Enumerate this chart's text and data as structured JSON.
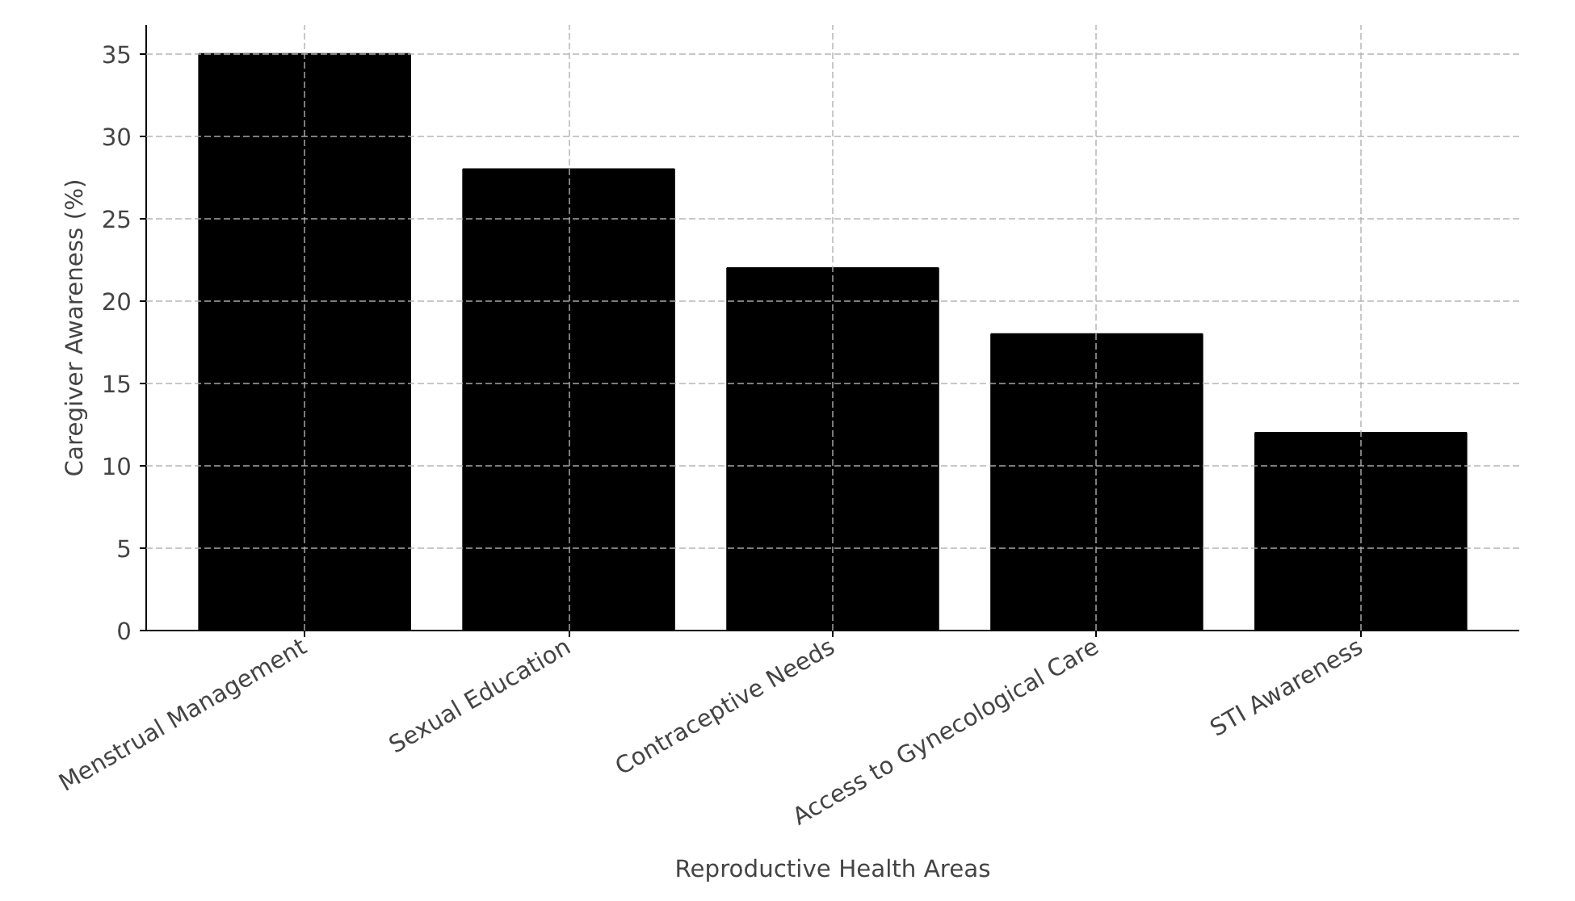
{
  "chart_data": {
    "type": "bar",
    "xlabel": "Reproductive Health Areas",
    "ylabel": "Caregiver Awareness (%)",
    "categories": [
      "Menstrual Management",
      "Sexual Education",
      "Contraceptive Needs",
      "Access to Gynecological Care",
      "STI Awareness"
    ],
    "values": [
      35,
      28,
      22,
      18,
      12
    ],
    "color": "#000000",
    "ylim": [
      0,
      36.75
    ],
    "yticks": [
      0,
      5,
      10,
      15,
      20,
      25,
      30,
      35
    ],
    "grid": true
  }
}
